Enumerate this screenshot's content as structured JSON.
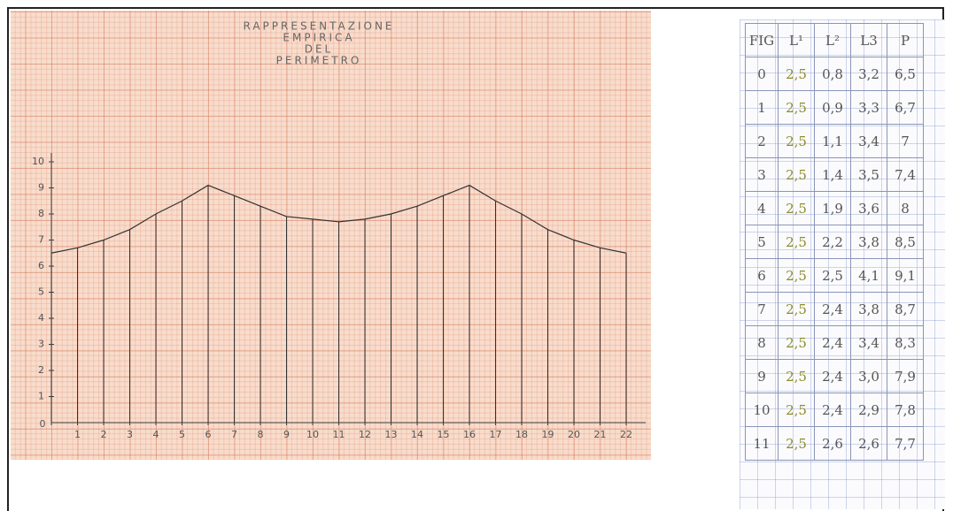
{
  "chart_data": {
    "type": "line",
    "title": [
      "RAPPRESENTAZIONE",
      "EMPIRICA",
      "DEL",
      "PERIMETRO"
    ],
    "x": [
      0,
      1,
      2,
      3,
      4,
      5,
      6,
      7,
      8,
      9,
      10,
      11,
      12,
      13,
      14,
      15,
      16,
      17,
      18,
      19,
      20,
      21,
      22
    ],
    "values": [
      6.5,
      6.7,
      7,
      7.4,
      8,
      8.5,
      9.1,
      8.7,
      8.3,
      7.9,
      7.8,
      7.7,
      7.8,
      8,
      8.3,
      8.7,
      9.1,
      8.5,
      8,
      7.4,
      7,
      6.7,
      6.5
    ],
    "color": "#333333",
    "xlim": [
      0,
      22
    ],
    "xticks": [
      0,
      1,
      2,
      3,
      4,
      5,
      6,
      7,
      8,
      9,
      10,
      11,
      12,
      13,
      14,
      15,
      16,
      17,
      18,
      19,
      20,
      21,
      22
    ],
    "ylim": [
      0,
      10
    ],
    "yticks": [
      1,
      2,
      3,
      4,
      5,
      6,
      7,
      8,
      9,
      10
    ],
    "stems": true
  },
  "table": {
    "header": [
      "FIG",
      "L¹",
      "L²",
      "L3",
      "P"
    ],
    "rows": [
      [
        "0",
        "2,5",
        "0,8",
        "3,2",
        "6,5"
      ],
      [
        "1",
        "2,5",
        "0,9",
        "3,3",
        "6,7"
      ],
      [
        "2",
        "2,5",
        "1,1",
        "3,4",
        "7"
      ],
      [
        "3",
        "2,5",
        "1,4",
        "3,5",
        "7,4"
      ],
      [
        "4",
        "2,5",
        "1,9",
        "3,6",
        "8"
      ],
      [
        "5",
        "2,5",
        "2,2",
        "3,8",
        "8,5"
      ],
      [
        "6",
        "2,5",
        "2,5",
        "4,1",
        "9,1"
      ],
      [
        "7",
        "2,5",
        "2,4",
        "3,8",
        "8,7"
      ],
      [
        "8",
        "2,5",
        "2,4",
        "3,4",
        "8,3"
      ],
      [
        "9",
        "2,5",
        "2,4",
        "3,0",
        "7,9"
      ],
      [
        "10",
        "2,5",
        "2,4",
        "2,9",
        "7,8"
      ],
      [
        "11",
        "2,5",
        "2,6",
        "2,6",
        "7,7"
      ]
    ]
  }
}
